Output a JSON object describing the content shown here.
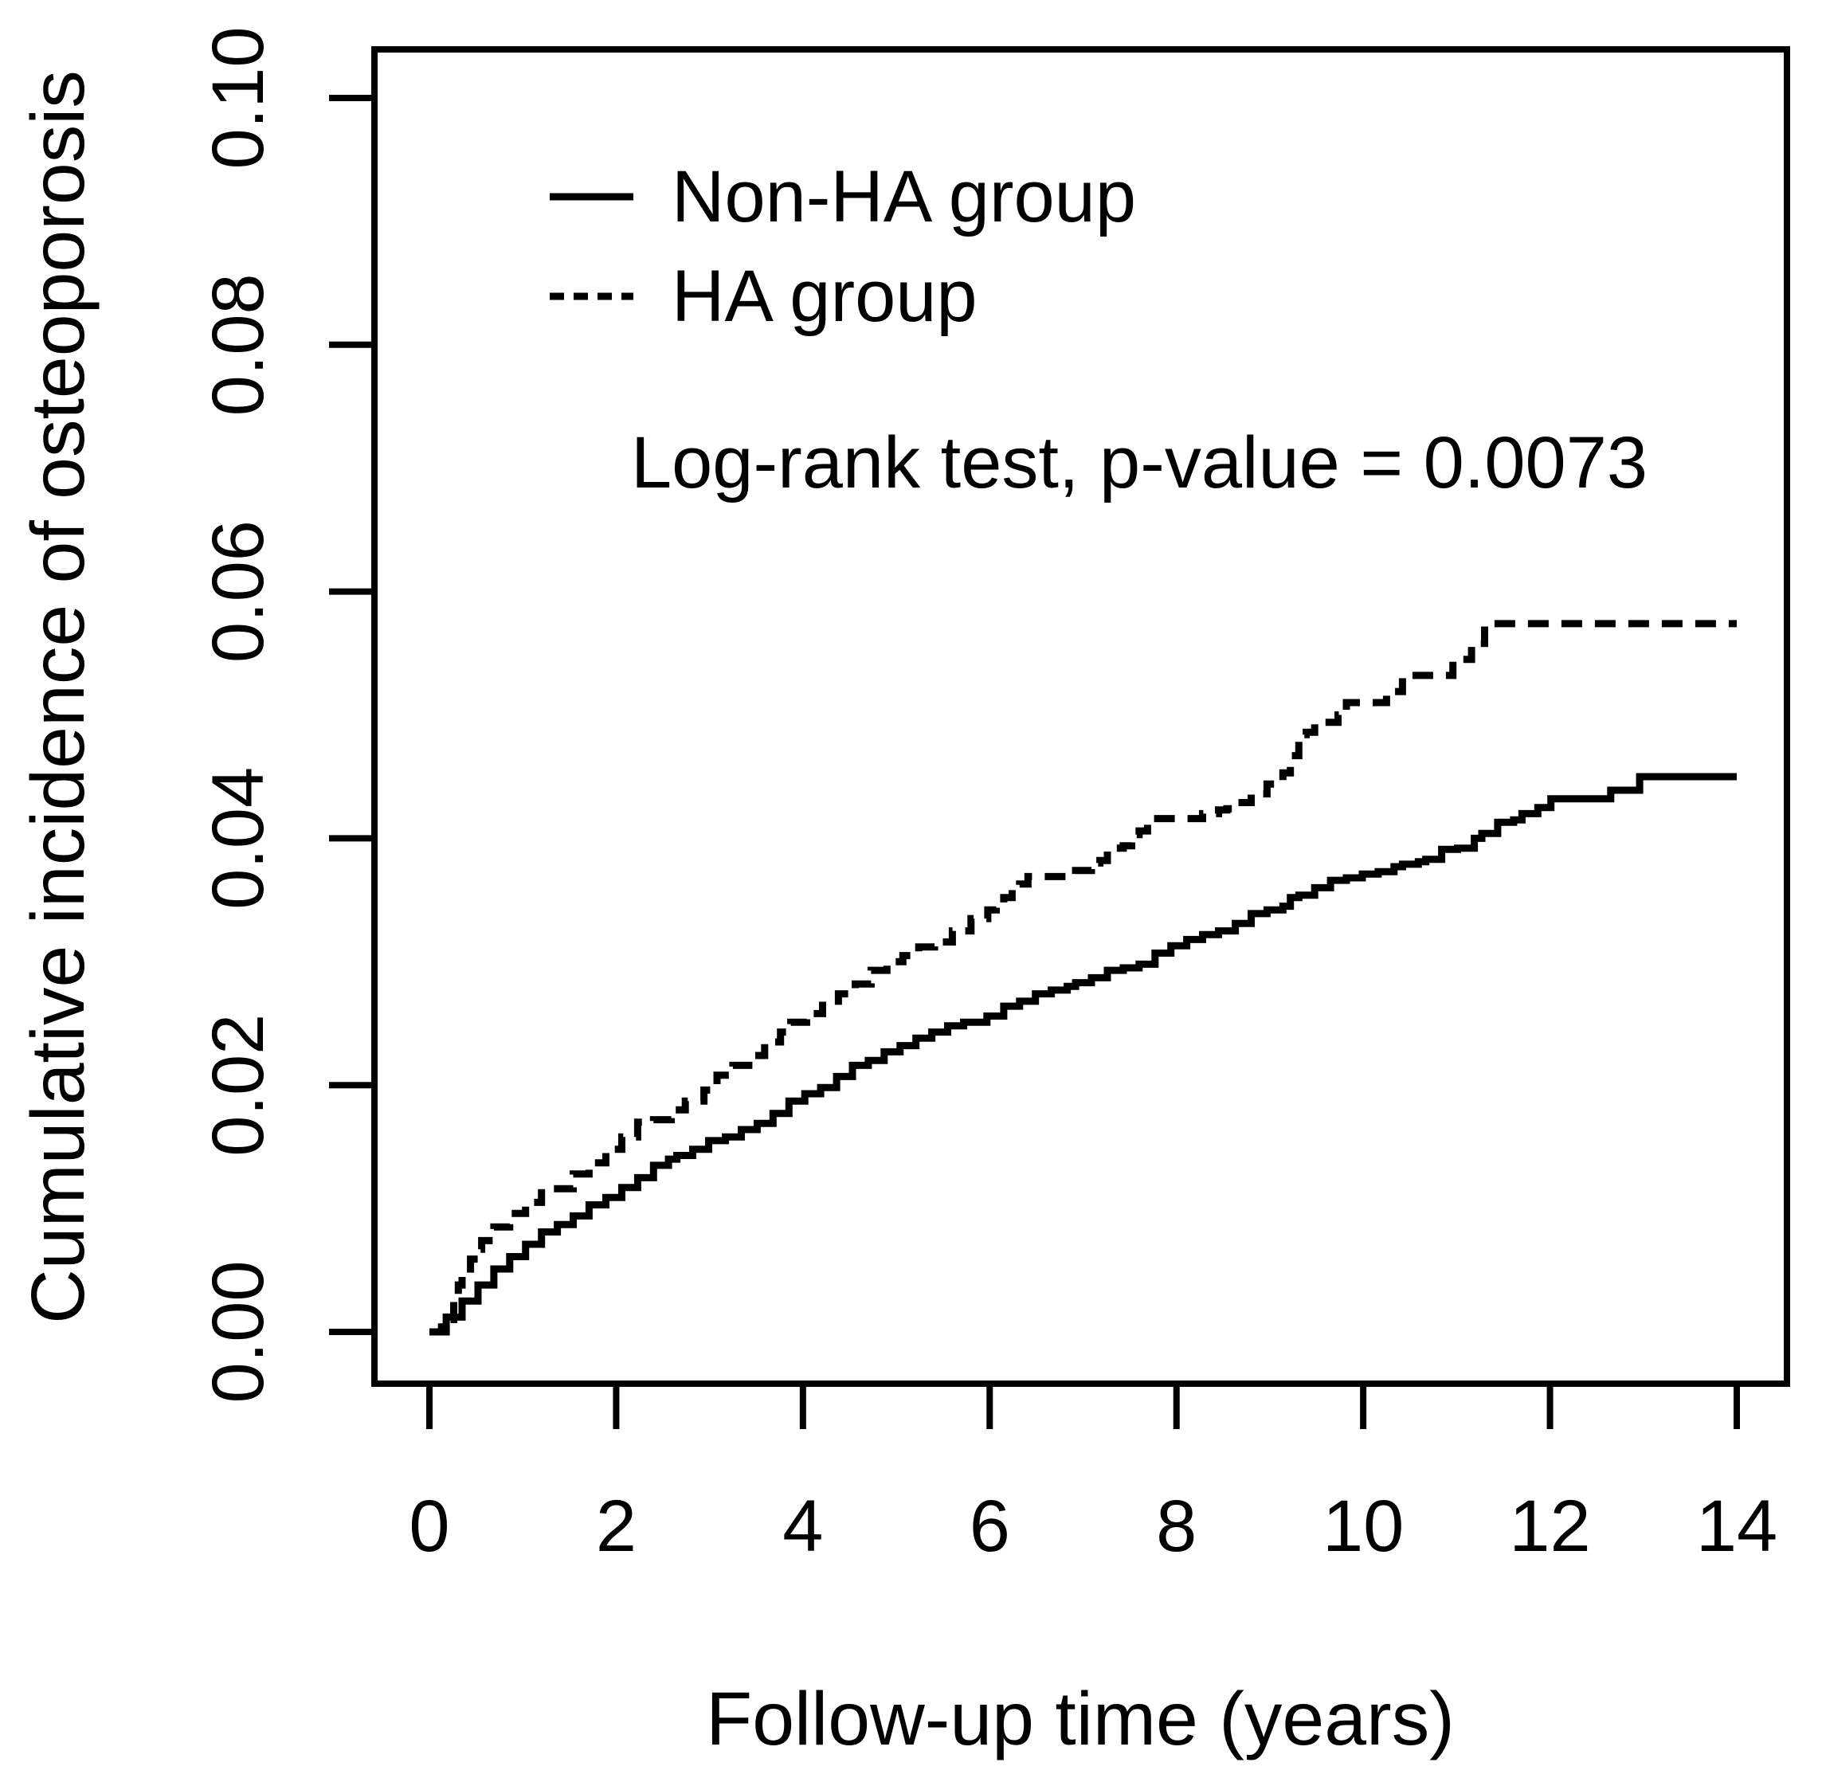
{
  "colors": {
    "foreground": "#000000",
    "background": "#ffffff"
  },
  "chart_data": {
    "type": "line",
    "subtype": "kaplan-meier-cumulative-incidence-step",
    "title": "",
    "xlabel": "Follow-up time (years)",
    "ylabel": "Cumulative incidence of osteoporosis",
    "xlim": [
      0,
      14
    ],
    "ylim": [
      0,
      0.1
    ],
    "grid": false,
    "x_tick_labels": [
      "0",
      "2",
      "4",
      "6",
      "8",
      "10",
      "12",
      "14"
    ],
    "x_tick_values": [
      0,
      2,
      4,
      6,
      8,
      10,
      12,
      14
    ],
    "y_tick_labels": [
      "0.00",
      "0.02",
      "0.04",
      "0.06",
      "0.08",
      "0.10"
    ],
    "y_tick_values": [
      0,
      0.02,
      0.04,
      0.06,
      0.08,
      0.1
    ],
    "annotation": "Log-rank test, p-value = 0.0073",
    "legend_position": "top-left-inside",
    "legend": [
      {
        "label": "Non-HA group",
        "style": "solid"
      },
      {
        "label": "HA group",
        "style": "dashed"
      }
    ],
    "series": [
      {
        "name": "Non-HA group",
        "style": "solid",
        "steps": [
          [
            0.0,
            0.0
          ],
          [
            0.18,
            0.0012
          ],
          [
            0.35,
            0.0025
          ],
          [
            0.52,
            0.0038
          ],
          [
            0.69,
            0.0051
          ],
          [
            0.86,
            0.0061
          ],
          [
            1.03,
            0.0071
          ],
          [
            1.2,
            0.0081
          ],
          [
            1.37,
            0.0087
          ],
          [
            1.54,
            0.0094
          ],
          [
            1.71,
            0.0103
          ],
          [
            1.89,
            0.0109
          ],
          [
            2.06,
            0.0117
          ],
          [
            2.23,
            0.0125
          ],
          [
            2.4,
            0.0135
          ],
          [
            2.56,
            0.014
          ],
          [
            2.65,
            0.0143
          ],
          [
            2.82,
            0.0148
          ],
          [
            2.99,
            0.0155
          ],
          [
            3.17,
            0.0158
          ],
          [
            3.34,
            0.0164
          ],
          [
            3.51,
            0.0169
          ],
          [
            3.68,
            0.0177
          ],
          [
            3.85,
            0.0187
          ],
          [
            4.02,
            0.0193
          ],
          [
            4.19,
            0.0198
          ],
          [
            4.36,
            0.0207
          ],
          [
            4.53,
            0.0216
          ],
          [
            4.7,
            0.022
          ],
          [
            4.87,
            0.0227
          ],
          [
            5.04,
            0.0232
          ],
          [
            5.21,
            0.0238
          ],
          [
            5.38,
            0.0243
          ],
          [
            5.55,
            0.0248
          ],
          [
            5.72,
            0.0251
          ],
          [
            5.97,
            0.0256
          ],
          [
            6.15,
            0.0264
          ],
          [
            6.32,
            0.0268
          ],
          [
            6.49,
            0.0274
          ],
          [
            6.66,
            0.0277
          ],
          [
            6.83,
            0.028
          ],
          [
            6.92,
            0.0283
          ],
          [
            7.09,
            0.0287
          ],
          [
            7.26,
            0.0293
          ],
          [
            7.43,
            0.0295
          ],
          [
            7.6,
            0.0298
          ],
          [
            7.77,
            0.0307
          ],
          [
            7.94,
            0.0313
          ],
          [
            8.11,
            0.0318
          ],
          [
            8.28,
            0.0322
          ],
          [
            8.45,
            0.0325
          ],
          [
            8.63,
            0.0331
          ],
          [
            8.8,
            0.0339
          ],
          [
            8.97,
            0.0342
          ],
          [
            9.14,
            0.0345
          ],
          [
            9.22,
            0.0352
          ],
          [
            9.31,
            0.0354
          ],
          [
            9.48,
            0.036
          ],
          [
            9.65,
            0.0366
          ],
          [
            9.82,
            0.0368
          ],
          [
            9.99,
            0.0371
          ],
          [
            10.16,
            0.0373
          ],
          [
            10.33,
            0.0377
          ],
          [
            10.42,
            0.0379
          ],
          [
            10.59,
            0.0381
          ],
          [
            10.67,
            0.0383
          ],
          [
            10.84,
            0.0391
          ],
          [
            11.01,
            0.0392
          ],
          [
            11.19,
            0.04
          ],
          [
            11.27,
            0.0404
          ],
          [
            11.44,
            0.0413
          ],
          [
            11.61,
            0.0415
          ],
          [
            11.7,
            0.042
          ],
          [
            11.87,
            0.0425
          ],
          [
            12.01,
            0.0432
          ],
          [
            12.65,
            0.0439
          ],
          [
            12.96,
            0.045
          ],
          [
            14.0,
            0.045
          ]
        ]
      },
      {
        "name": "HA group",
        "style": "dashed",
        "steps": [
          [
            0.0,
            0.0
          ],
          [
            0.13,
            0.001
          ],
          [
            0.26,
            0.0026
          ],
          [
            0.31,
            0.0038
          ],
          [
            0.35,
            0.0048
          ],
          [
            0.44,
            0.0059
          ],
          [
            0.52,
            0.0067
          ],
          [
            0.56,
            0.0074
          ],
          [
            0.69,
            0.0085
          ],
          [
            0.86,
            0.0096
          ],
          [
            1.03,
            0.0105
          ],
          [
            1.2,
            0.0116
          ],
          [
            1.54,
            0.0128
          ],
          [
            1.71,
            0.0137
          ],
          [
            1.89,
            0.0148
          ],
          [
            2.06,
            0.0158
          ],
          [
            2.23,
            0.017
          ],
          [
            2.4,
            0.0172
          ],
          [
            2.59,
            0.018
          ],
          [
            2.74,
            0.0187
          ],
          [
            2.94,
            0.0196
          ],
          [
            3.08,
            0.0208
          ],
          [
            3.25,
            0.0216
          ],
          [
            3.42,
            0.0224
          ],
          [
            3.59,
            0.0235
          ],
          [
            3.76,
            0.0243
          ],
          [
            3.87,
            0.0251
          ],
          [
            4.04,
            0.0258
          ],
          [
            4.21,
            0.0268
          ],
          [
            4.38,
            0.0274
          ],
          [
            4.56,
            0.0282
          ],
          [
            4.73,
            0.0293
          ],
          [
            4.9,
            0.03
          ],
          [
            5.07,
            0.0305
          ],
          [
            5.24,
            0.0312
          ],
          [
            5.41,
            0.0316
          ],
          [
            5.6,
            0.0325
          ],
          [
            5.8,
            0.0335
          ],
          [
            5.98,
            0.0342
          ],
          [
            6.07,
            0.0348
          ],
          [
            6.15,
            0.0352
          ],
          [
            6.24,
            0.036
          ],
          [
            6.32,
            0.0363
          ],
          [
            6.41,
            0.0369
          ],
          [
            6.83,
            0.0371
          ],
          [
            6.92,
            0.0374
          ],
          [
            7.09,
            0.038
          ],
          [
            7.18,
            0.0382
          ],
          [
            7.26,
            0.0392
          ],
          [
            7.43,
            0.0394
          ],
          [
            7.52,
            0.0403
          ],
          [
            7.6,
            0.0406
          ],
          [
            7.69,
            0.0416
          ],
          [
            8.28,
            0.042
          ],
          [
            8.45,
            0.0423
          ],
          [
            8.54,
            0.0424
          ],
          [
            8.63,
            0.0429
          ],
          [
            8.8,
            0.0436
          ],
          [
            8.97,
            0.0444
          ],
          [
            9.14,
            0.0453
          ],
          [
            9.22,
            0.0467
          ],
          [
            9.31,
            0.0484
          ],
          [
            9.39,
            0.0486
          ],
          [
            9.48,
            0.0493
          ],
          [
            9.56,
            0.0494
          ],
          [
            9.73,
            0.05
          ],
          [
            9.82,
            0.051
          ],
          [
            10.25,
            0.0518
          ],
          [
            10.33,
            0.0519
          ],
          [
            10.42,
            0.0532
          ],
          [
            10.96,
            0.0544
          ],
          [
            11.04,
            0.0545
          ],
          [
            11.16,
            0.0558
          ],
          [
            11.3,
            0.0574
          ],
          [
            14.0,
            0.0574
          ]
        ]
      }
    ]
  }
}
